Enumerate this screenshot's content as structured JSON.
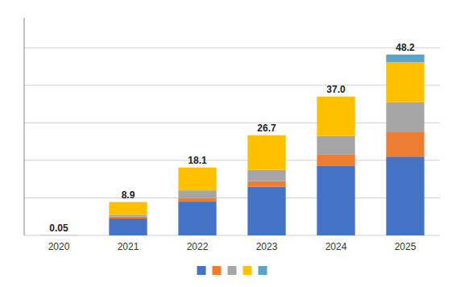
{
  "chart_data": {
    "type": "bar",
    "stacked": true,
    "categories": [
      "2020",
      "2021",
      "2022",
      "2023",
      "2024",
      "2025"
    ],
    "series": [
      {
        "color": "#4472C4",
        "values": [
          0.03,
          4.5,
          9.0,
          13.0,
          18.5,
          21.0
        ]
      },
      {
        "color": "#ED7D31",
        "values": [
          0.005,
          0.5,
          1.0,
          1.5,
          3.0,
          6.5
        ]
      },
      {
        "color": "#A5A5A5",
        "values": [
          0.005,
          0.5,
          2.0,
          3.0,
          5.0,
          8.0
        ]
      },
      {
        "color": "#FFC000",
        "values": [
          0.005,
          3.4,
          6.1,
          9.2,
          10.5,
          10.7
        ]
      },
      {
        "color": "#5BA3C9",
        "values": [
          0.0,
          0.0,
          0.0,
          0.0,
          0.0,
          2.0
        ]
      }
    ],
    "totals": [
      0.05,
      8.9,
      18.1,
      26.7,
      37.0,
      48.2
    ],
    "total_labels": [
      "0.05",
      "8.9",
      "18.1",
      "26.7",
      "37.0",
      "48.2"
    ],
    "ylim": [
      0,
      58
    ],
    "yticks": [
      0,
      10,
      20,
      30,
      40,
      50
    ],
    "grid": true,
    "tick_labels": "x",
    "legend": "bottom"
  }
}
